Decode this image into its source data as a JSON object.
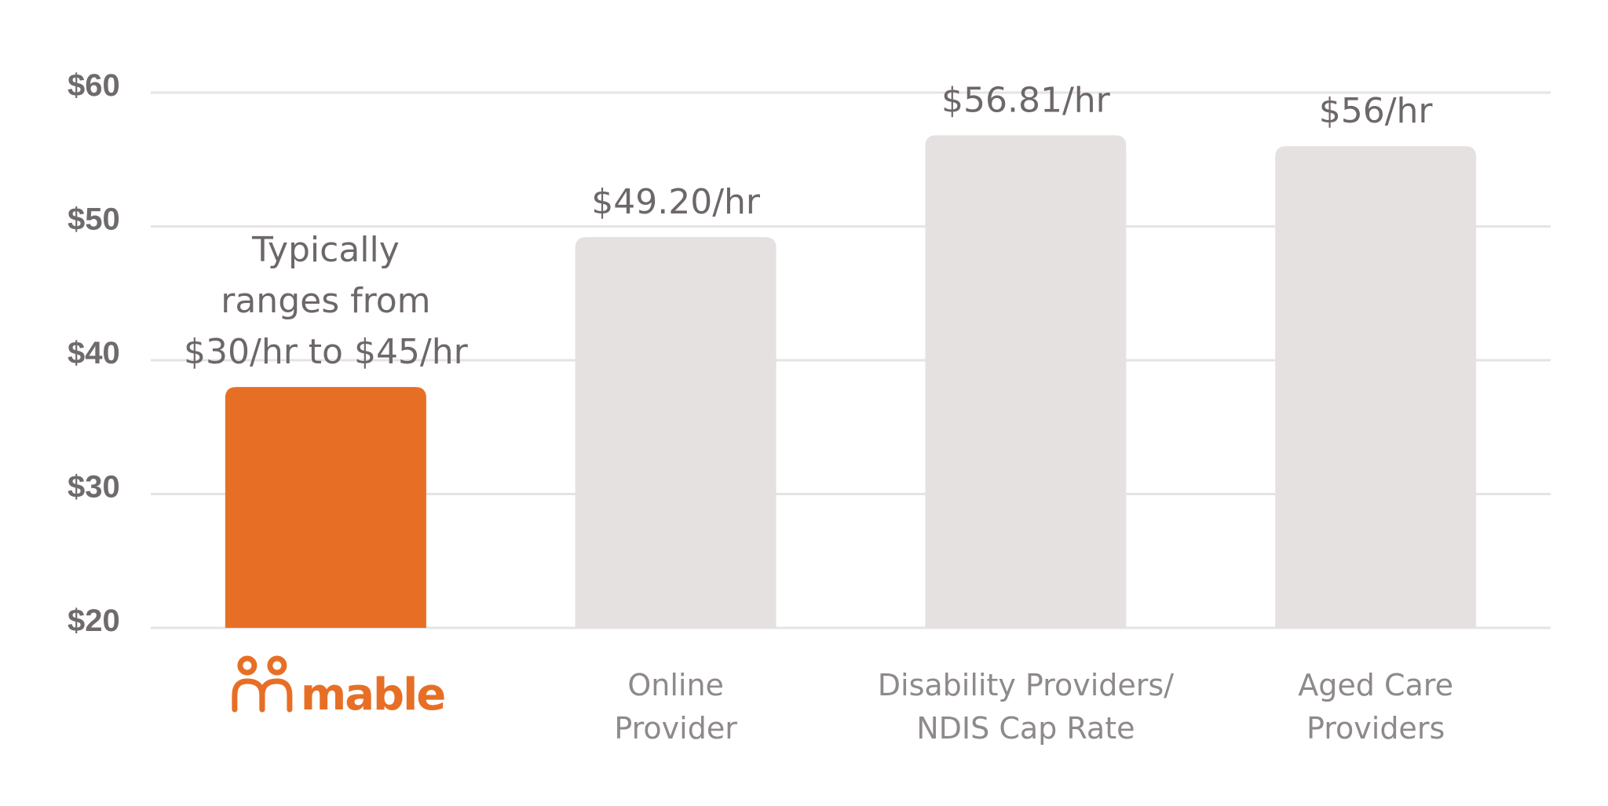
{
  "chart_data": {
    "type": "bar",
    "categories": [
      {
        "label": [
          "mable"
        ],
        "is_brand": true
      },
      {
        "label": [
          "Online",
          "Provider"
        ]
      },
      {
        "label": [
          "Disability Providers/",
          "NDIS Cap Rate"
        ]
      },
      {
        "label": [
          "Aged Care",
          "Providers"
        ]
      }
    ],
    "values": [
      38,
      49.2,
      56.81,
      56
    ],
    "data_labels": [
      [
        "Typically",
        "ranges from",
        "$30/hr to $45/hr"
      ],
      [
        "$49.20/hr"
      ],
      [
        "$56.81/hr"
      ],
      [
        "$56/hr"
      ]
    ],
    "yticks": [
      "$20",
      "$30",
      "$40",
      "$50",
      "$60"
    ],
    "ytick_values": [
      20,
      30,
      40,
      50,
      60
    ],
    "ylim": [
      20,
      60
    ],
    "grid": true,
    "colors": {
      "highlight": "#e76f25",
      "bar": "#e6e1e1",
      "grid": "#e6e3e4",
      "tick_text": "#6f6a6d",
      "label_text": "#6d676a",
      "category_text": "#8e898c"
    }
  }
}
